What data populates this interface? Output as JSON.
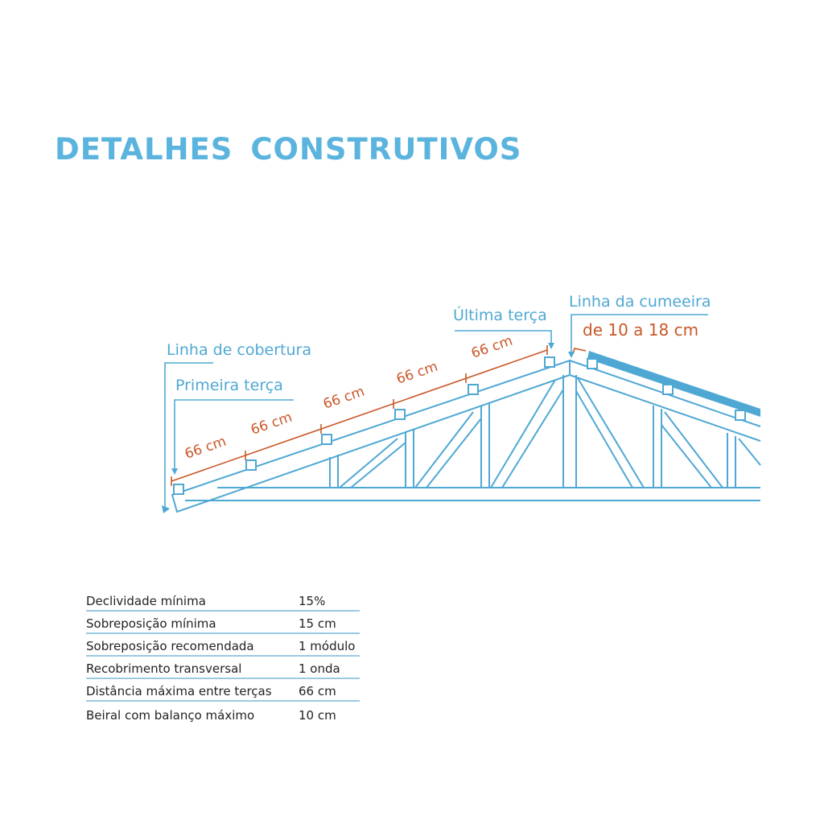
{
  "title": "DETALHES  CONSTRUTIVOS",
  "diagram": {
    "labels": {
      "linha_cobertura": "Linha de cobertura",
      "primeira_terca": "Primeira terça",
      "ultima_terca": "Última terça",
      "linha_cumeeira": "Linha da cumeeira",
      "cumeeira_range": "de 10 a 18 cm"
    },
    "spacings": [
      "66 cm",
      "66 cm",
      "66 cm",
      "66 cm",
      "66 cm"
    ],
    "colors": {
      "structure": "#4fa8d4",
      "dimension": "#c9582a",
      "title": "#5ab4de"
    }
  },
  "specs": [
    {
      "label": "Declividade mínima",
      "value": "15%"
    },
    {
      "label": "Sobreposição mínima",
      "value": "15 cm"
    },
    {
      "label": "Sobreposição recomendada",
      "value": "1 módulo"
    },
    {
      "label": "Recobrimento transversal",
      "value": "1 onda"
    },
    {
      "label": "Distância máxima entre terças",
      "value": "66 cm"
    },
    {
      "label": "Beiral com balanço máximo",
      "value": "10 cm"
    }
  ]
}
